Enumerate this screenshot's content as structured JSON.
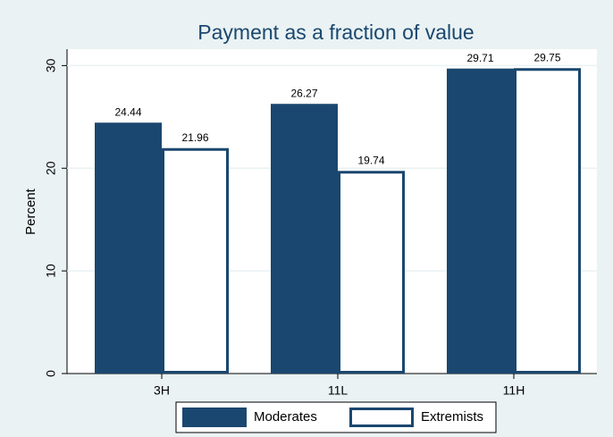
{
  "chart_data": {
    "type": "bar",
    "title": "Payment as a fraction of value",
    "ylabel": "Percent",
    "categories": [
      "3H",
      "11L",
      "11H"
    ],
    "series": [
      {
        "name": "Moderates",
        "color": "#1a476f",
        "fill": "#1a476f",
        "values": [
          24.44,
          26.27,
          29.71
        ]
      },
      {
        "name": "Extremists",
        "color": "#1a476f",
        "fill": "#ffffff",
        "values": [
          21.96,
          19.74,
          29.75
        ]
      }
    ],
    "ylim": [
      0,
      31.6
    ],
    "yticks": [
      0,
      10,
      20,
      30
    ],
    "grid": true,
    "legend": "bottom"
  }
}
